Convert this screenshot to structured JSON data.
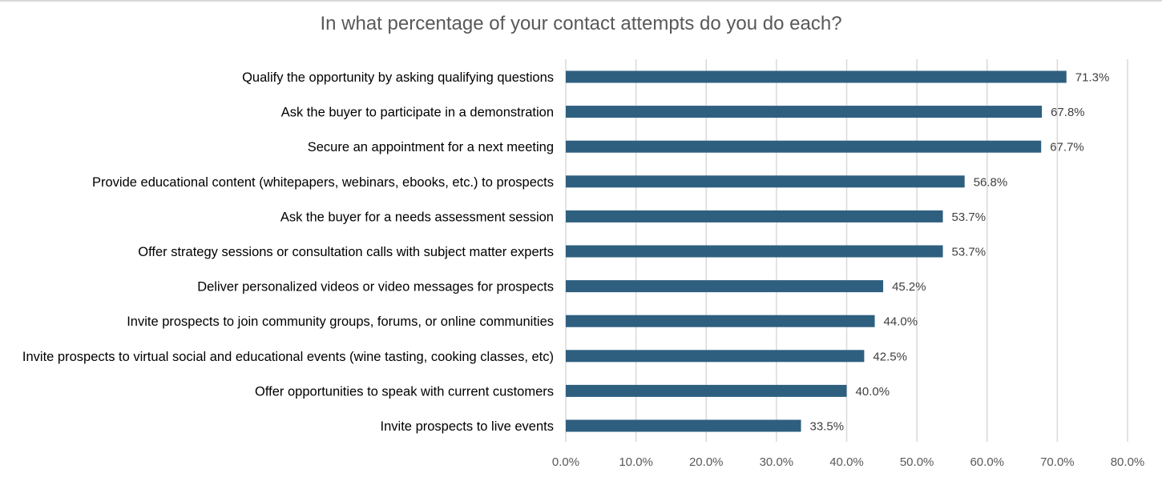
{
  "chart_data": {
    "type": "bar",
    "orientation": "horizontal",
    "title": "In what percentage of your contact attempts do you do each?",
    "xlabel": "",
    "ylabel": "",
    "categories": [
      "Qualify the opportunity by asking qualifying questions",
      "Ask the buyer to participate in a demonstration",
      "Secure an appointment for a next meeting",
      "Provide educational content (whitepapers, webinars, ebooks, etc.) to prospects",
      "Ask the buyer for a needs assessment session",
      "Offer strategy sessions or consultation calls with subject matter experts",
      "Deliver personalized videos or video messages for prospects",
      "Invite prospects to join community groups, forums, or online communities",
      "Invite prospects to virtual social and educational events (wine tasting, cooking classes, etc)",
      "Offer opportunities to speak with current customers",
      "Invite prospects to live events"
    ],
    "values": [
      71.3,
      67.8,
      67.7,
      56.8,
      53.7,
      53.7,
      45.2,
      44.0,
      42.5,
      40.0,
      33.5
    ],
    "value_labels": [
      "71.3%",
      "67.8%",
      "67.7%",
      "56.8%",
      "53.7%",
      "53.7%",
      "45.2%",
      "44.0%",
      "42.5%",
      "40.0%",
      "33.5%"
    ],
    "xlim": [
      0,
      80
    ],
    "xticks": [
      0,
      10,
      20,
      30,
      40,
      50,
      60,
      70,
      80
    ],
    "xtick_labels": [
      "0.0%",
      "10.0%",
      "20.0%",
      "30.0%",
      "40.0%",
      "50.0%",
      "60.0%",
      "70.0%",
      "80.0%"
    ],
    "grid": "vertical",
    "legend": "none",
    "colors": {
      "bar": "#2e5f7f",
      "grid": "#d9d9d9",
      "title": "#595959",
      "tick_label": "#595959",
      "data_label": "#404040"
    }
  }
}
